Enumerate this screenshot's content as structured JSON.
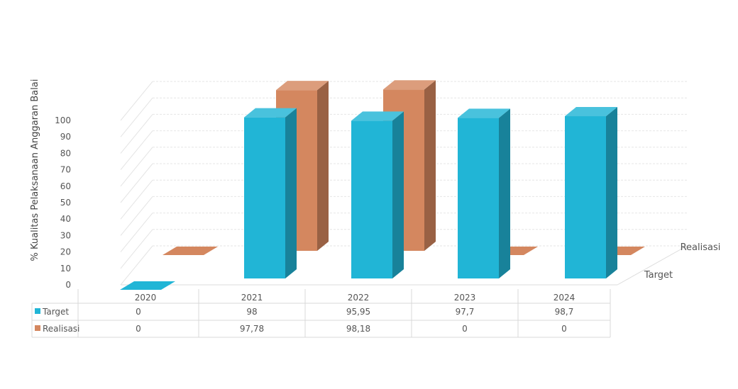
{
  "chart_data": {
    "type": "bar",
    "ylabel": "% Kualitas Pelaksanaan Anggaran Balai",
    "yticks": [
      0,
      10,
      20,
      30,
      40,
      50,
      60,
      70,
      80,
      90,
      100
    ],
    "ylim": [
      0,
      100
    ],
    "categories": [
      "2020",
      "2021",
      "2022",
      "2023",
      "2024"
    ],
    "series": [
      {
        "name": "Target",
        "color": "#21b5d6",
        "values": [
          0,
          98,
          95.95,
          97.7,
          98.7
        ],
        "value_labels": [
          "0",
          "98",
          "95,95",
          "97,7",
          "98,7"
        ]
      },
      {
        "name": "Realisasi",
        "color": "#d4875f",
        "values": [
          0,
          97.78,
          98.18,
          0,
          0
        ],
        "value_labels": [
          "0",
          "97,78",
          "98,18",
          "0",
          "0"
        ]
      }
    ],
    "legend": "data-table",
    "grid": true,
    "three_d": true
  }
}
